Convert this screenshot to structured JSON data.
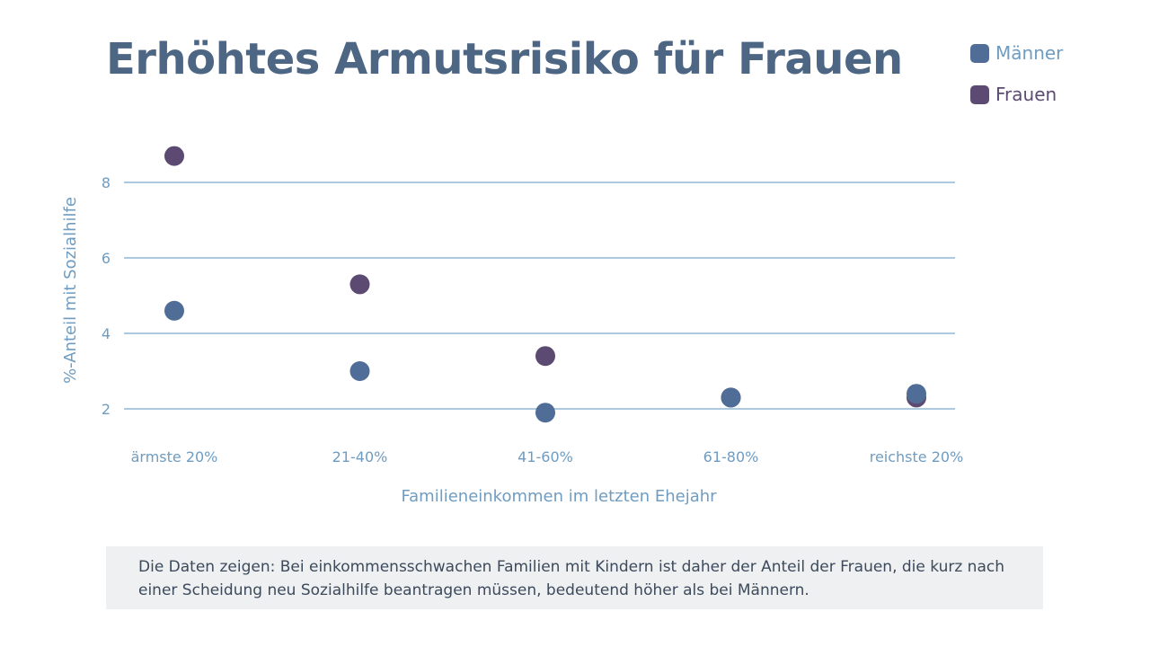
{
  "slide": {
    "caption": "Die Daten zeigen: Bei einkommensschwachen Familien mit Kindern ist daher der Anteil der Frauen, die kurz nach einer Scheidung neu Sozialhilfe beantragen müssen, bedeutend höher als bei Männern."
  },
  "colors": {
    "title": "#4d6684",
    "axis_text": "#6f9cc0",
    "gridline": "#5b93be",
    "maenner": "#4f6d96",
    "frauen": "#5c4a72",
    "caption_bg": "#eef0f2",
    "caption_text": "#3c4a5c"
  },
  "chart_data": {
    "type": "scatter",
    "title": "Erhöhtes Armutsrisiko für Frauen",
    "xlabel": "Familieneinkommen im letzten Ehejahr",
    "ylabel": "%-Anteil mit Sozialhilfe",
    "categories": [
      "ärmste 20%",
      "21-40%",
      "41-60%",
      "61-80%",
      "reichste 20%"
    ],
    "yticks": [
      2,
      4,
      6,
      8
    ],
    "ylim": [
      1.0,
      9.5
    ],
    "grid": true,
    "legend_position": "top-right",
    "series": [
      {
        "name": "Männer",
        "color": "#4f6d96",
        "values": [
          4.6,
          3.0,
          1.9,
          2.3,
          2.4
        ]
      },
      {
        "name": "Frauen",
        "color": "#5c4a72",
        "values": [
          8.7,
          5.3,
          3.4,
          2.3,
          2.3
        ]
      }
    ]
  }
}
